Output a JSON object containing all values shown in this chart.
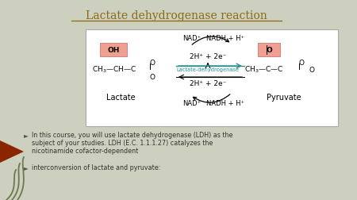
{
  "title": "Lactate dehydrogenase reaction",
  "title_color": "#8B6914",
  "bg_color": "#cdd0be",
  "salmon_box": "#f0a090",
  "salmon_edge": "#cc7777",
  "enzyme_label": "Lactate-dehydrogenase",
  "enzyme_color": "#2a9090",
  "lactate_label": "Lactate",
  "pyruvate_label": "Pyruvate",
  "nad_plus": "NAD⁺",
  "nadh": "NADH + H⁺",
  "react": "2H⁺ + 2e⁻",
  "bullet1_line1": "In this course, you will use lactate dehydrogenase (LDH) as the",
  "bullet1_line2": "subject of your studies. LDH (E.C. 1.1.1.27) catalyzes the",
  "bullet1_line3": "nicotinamide cofactor-dependent",
  "bullet2": "interconversion of lactate and pyruvate:",
  "red_arrow_color": "#8B2500",
  "text_color": "#333333",
  "bullet_arrow": "►"
}
